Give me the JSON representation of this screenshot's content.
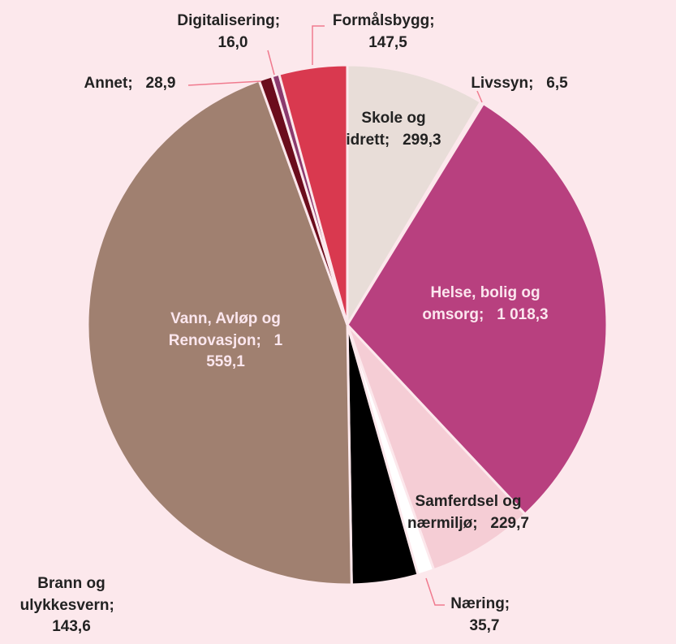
{
  "chart_data": {
    "type": "pie",
    "categories": [
      "Skole og idrett",
      "Livssyn",
      "Helse, bolig og omsorg",
      "Samferdsel og nærmiljø",
      "Næring",
      "Brann og ulykkesvern",
      "Vann, Avløp og Renovasjon",
      "Annet",
      "Digitalisering",
      "Formålsbygg"
    ],
    "values": [
      299.3,
      6.5,
      1018.3,
      229.7,
      35.7,
      143.6,
      1559.1,
      28.9,
      16.0,
      147.5
    ],
    "value_labels": [
      "299,3",
      "6,5",
      "1 018,3",
      "229,7",
      "35,7",
      "143,6",
      "1 559,1",
      "28,9",
      "16,0",
      "147,5"
    ],
    "label_separator": ";",
    "colors": [
      "#e8ddd8",
      "#f6eef0",
      "#b8407f",
      "#f5cdd5",
      "#ffffff",
      "#000000",
      "#a08070",
      "#6b0c1c",
      "#8b3a6e",
      "#d9394f"
    ]
  }
}
